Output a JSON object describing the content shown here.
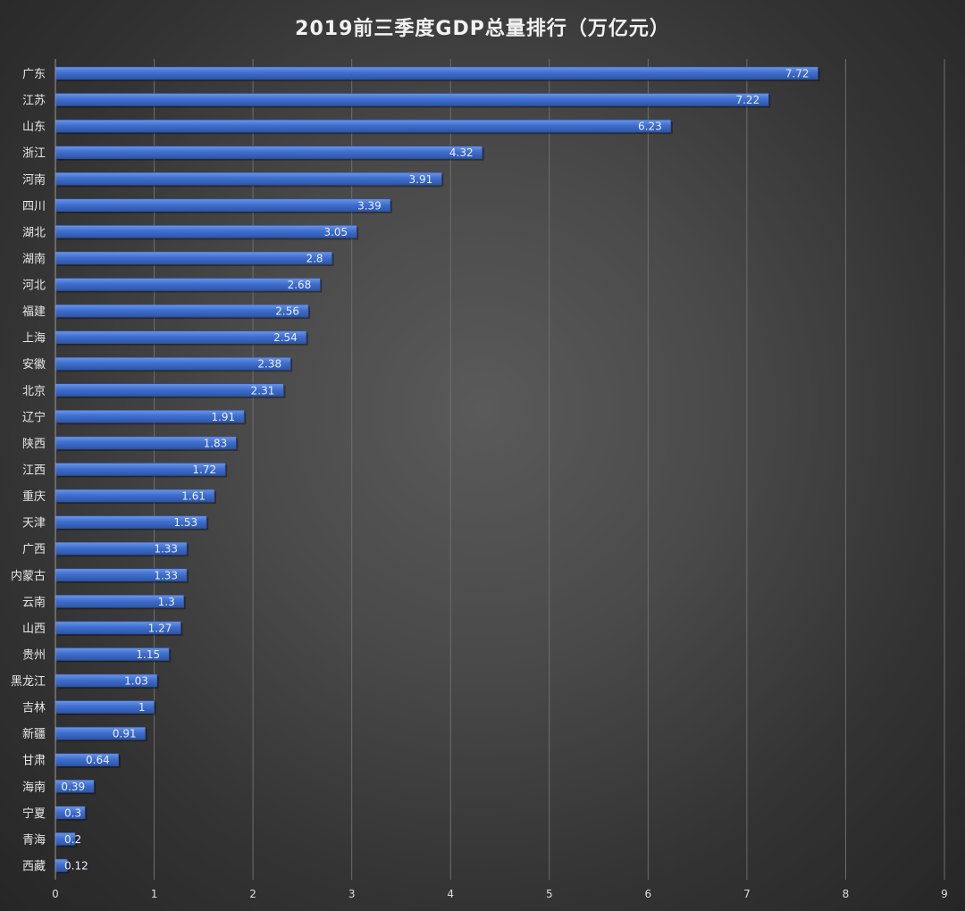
{
  "chart_data": {
    "type": "bar",
    "orientation": "horizontal",
    "title": "2019前三季度GDP总量排行（万亿元）",
    "xlabel": "",
    "ylabel": "",
    "xlim": [
      0,
      9
    ],
    "xticks": [
      0,
      1,
      2,
      3,
      4,
      5,
      6,
      7,
      8,
      9
    ],
    "grid": true,
    "legend": "none",
    "bar_color": "#3f6fcf",
    "categories": [
      "广东",
      "江苏",
      "山东",
      "浙江",
      "河南",
      "四川",
      "湖北",
      "湖南",
      "河北",
      "福建",
      "上海",
      "安徽",
      "北京",
      "辽宁",
      "陕西",
      "江西",
      "重庆",
      "天津",
      "广西",
      "内蒙古",
      "云南",
      "山西",
      "贵州",
      "黑龙江",
      "吉林",
      "新疆",
      "甘肃",
      "海南",
      "宁夏",
      "青海",
      "西藏"
    ],
    "values": [
      7.72,
      7.22,
      6.23,
      4.32,
      3.91,
      3.39,
      3.05,
      2.8,
      2.68,
      2.56,
      2.54,
      2.38,
      2.31,
      1.91,
      1.83,
      1.72,
      1.61,
      1.53,
      1.33,
      1.33,
      1.3,
      1.27,
      1.15,
      1.03,
      1,
      0.91,
      0.64,
      0.39,
      0.3,
      0.2,
      0.12
    ],
    "data_labels": [
      "7.72",
      "7.22",
      "6.23",
      "4.32",
      "3.91",
      "3.39",
      "3.05",
      "2.8",
      "2.68",
      "2.56",
      "2.54",
      "2.38",
      "2.31",
      "1.91",
      "1.83",
      "1.72",
      "1.61",
      "1.53",
      "1.33",
      "1.33",
      "1.3",
      "1.27",
      "1.15",
      "1.03",
      "1",
      "0.91",
      "0.64",
      "0.39",
      "0.3",
      "0.2",
      "0.12"
    ]
  }
}
